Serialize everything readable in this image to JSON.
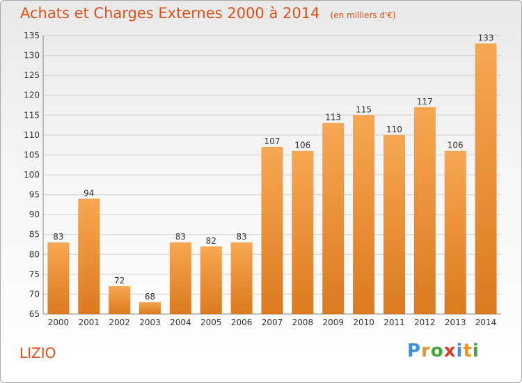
{
  "header": {
    "title": "Achats et Charges Externes 2000 à 2014",
    "subtitle": "(en milliers d'€)"
  },
  "footer": {
    "commune": "LIZIO",
    "logo_text": "Proxiti"
  },
  "colors": {
    "accent": "#dd4f14",
    "bar_top": "#f7a752",
    "bar_bottom": "#dc7a1e",
    "logo_letters": [
      "#3b8fd9",
      "#e8961e",
      "#41a83c",
      "#d93d2a",
      "#3b8fd9",
      "#e8961e",
      "#41a83c"
    ]
  },
  "chart_data": {
    "type": "bar",
    "categories": [
      "2000",
      "2001",
      "2002",
      "2003",
      "2004",
      "2005",
      "2006",
      "2007",
      "2008",
      "2009",
      "2010",
      "2011",
      "2012",
      "2013",
      "2014"
    ],
    "values": [
      83,
      94,
      72,
      68,
      83,
      82,
      83,
      107,
      106,
      113,
      115,
      110,
      117,
      106,
      133
    ],
    "title": "Achats et Charges Externes 2000 à 2014",
    "subtitle": "(en milliers d'€)",
    "xlabel": "",
    "ylabel": "",
    "ylim": [
      65,
      135
    ],
    "yticks": [
      65,
      70,
      75,
      80,
      85,
      90,
      95,
      100,
      105,
      110,
      115,
      120,
      125,
      130,
      135
    ],
    "grid": true,
    "legend": "none"
  }
}
